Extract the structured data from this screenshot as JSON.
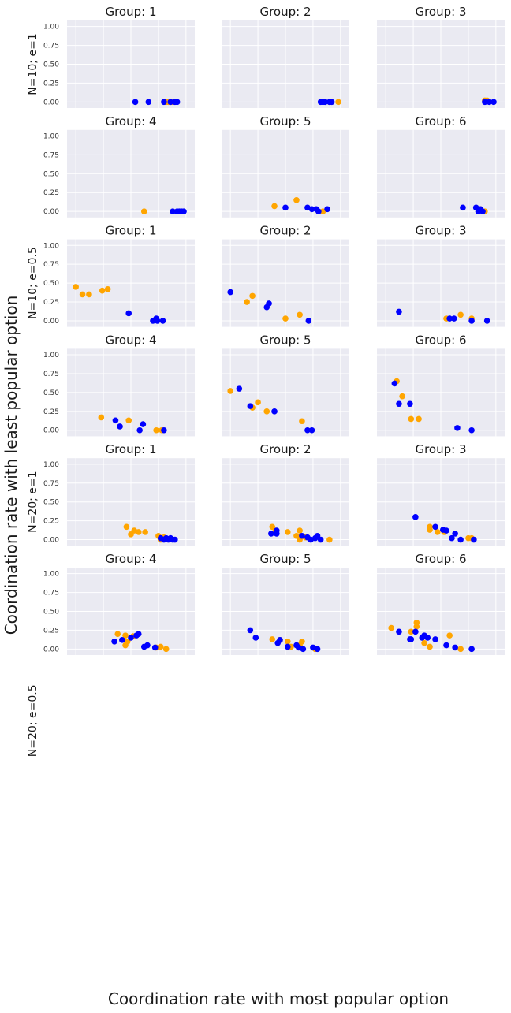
{
  "figure": {
    "ylabel": "Coordination rate with least popular option",
    "xlabel": "Coordination rate  with most popular option",
    "row_labels": [
      "N=10; e=1",
      "N=10; e=0.5",
      "N=20; e=1",
      "N=20; e=0.5"
    ]
  },
  "colors": {
    "orange": "#FFA500",
    "blue": "#0000FF",
    "panel_bg": "#EAEAF2",
    "grid": "#FFFFFF"
  },
  "chart_data": {
    "type": "scatter",
    "grid": true,
    "xlim": [
      -0.08,
      1.08
    ],
    "ylim": [
      -0.08,
      1.08
    ],
    "xticks": [
      "0.00",
      "0.25",
      "0.50",
      "0.75",
      "1.00"
    ],
    "yticks": [
      "0.00",
      "0.25",
      "0.50",
      "0.75",
      "1.00"
    ],
    "panels": [
      {
        "title": "Group: 1",
        "orange": [
          [
            0.82,
            0
          ],
          [
            0.84,
            0
          ],
          [
            0.86,
            0
          ],
          [
            0.88,
            0
          ]
        ],
        "blue": [
          [
            0.54,
            0
          ],
          [
            0.66,
            0
          ],
          [
            0.8,
            0
          ],
          [
            0.86,
            0
          ],
          [
            0.9,
            0
          ],
          [
            0.92,
            0
          ]
        ]
      },
      {
        "title": "Group: 2",
        "orange": [
          [
            0.98,
            0
          ],
          [
            0.9,
            0
          ]
        ],
        "blue": [
          [
            0.82,
            0
          ],
          [
            0.84,
            0
          ],
          [
            0.86,
            0
          ],
          [
            0.9,
            0
          ],
          [
            0.92,
            0
          ]
        ]
      },
      {
        "title": "Group: 3",
        "orange": [
          [
            0.9,
            0.02
          ],
          [
            0.92,
            0.02
          ]
        ],
        "blue": [
          [
            0.9,
            0
          ],
          [
            0.94,
            0
          ],
          [
            0.98,
            0
          ]
        ]
      },
      {
        "title": "Group: 4",
        "orange": [
          [
            0.62,
            0
          ]
        ],
        "blue": [
          [
            0.88,
            0
          ],
          [
            0.92,
            0
          ],
          [
            0.94,
            0
          ],
          [
            0.96,
            0
          ],
          [
            0.98,
            0
          ]
        ]
      },
      {
        "title": "Group: 5",
        "orange": [
          [
            0.4,
            0.07
          ],
          [
            0.6,
            0.15
          ],
          [
            0.8,
            0
          ],
          [
            0.84,
            0
          ]
        ],
        "blue": [
          [
            0.5,
            0.05
          ],
          [
            0.7,
            0.05
          ],
          [
            0.74,
            0.03
          ],
          [
            0.78,
            0.03
          ],
          [
            0.8,
            0
          ],
          [
            0.88,
            0.03
          ]
        ]
      },
      {
        "title": "Group: 6",
        "orange": [
          [
            0.86,
            0.03
          ],
          [
            0.9,
            0
          ]
        ],
        "blue": [
          [
            0.7,
            0.05
          ],
          [
            0.82,
            0.05
          ],
          [
            0.84,
            0
          ],
          [
            0.86,
            0.03
          ],
          [
            0.88,
            0
          ]
        ]
      },
      {
        "title": "Group: 1",
        "orange": [
          [
            0.0,
            0.45
          ],
          [
            0.06,
            0.35
          ],
          [
            0.12,
            0.35
          ],
          [
            0.24,
            0.4
          ],
          [
            0.29,
            0.42
          ]
        ],
        "blue": [
          [
            0.48,
            0.1
          ],
          [
            0.7,
            0
          ],
          [
            0.73,
            0.03
          ],
          [
            0.74,
            0
          ],
          [
            0.79,
            0
          ]
        ]
      },
      {
        "title": "Group: 2",
        "orange": [
          [
            0.15,
            0.25
          ],
          [
            0.2,
            0.33
          ],
          [
            0.5,
            0.03
          ],
          [
            0.63,
            0.08
          ]
        ],
        "blue": [
          [
            0.0,
            0.38
          ],
          [
            0.33,
            0.18
          ],
          [
            0.35,
            0.23
          ],
          [
            0.71,
            0
          ]
        ]
      },
      {
        "title": "Group: 3",
        "orange": [
          [
            0.55,
            0.03
          ],
          [
            0.68,
            0.08
          ],
          [
            0.78,
            0.03
          ]
        ],
        "blue": [
          [
            0.12,
            0.12
          ],
          [
            0.58,
            0.03
          ],
          [
            0.62,
            0.03
          ],
          [
            0.78,
            0
          ],
          [
            0.92,
            0
          ]
        ]
      },
      {
        "title": "Group: 4",
        "orange": [
          [
            0.23,
            0.17
          ],
          [
            0.48,
            0.13
          ],
          [
            0.73,
            0
          ],
          [
            0.78,
            0
          ]
        ],
        "blue": [
          [
            0.36,
            0.13
          ],
          [
            0.4,
            0.05
          ],
          [
            0.58,
            0
          ],
          [
            0.61,
            0.08
          ],
          [
            0.8,
            0
          ]
        ]
      },
      {
        "title": "Group: 5",
        "orange": [
          [
            0.0,
            0.52
          ],
          [
            0.2,
            0.3
          ],
          [
            0.25,
            0.37
          ],
          [
            0.33,
            0.25
          ],
          [
            0.65,
            0.12
          ]
        ],
        "blue": [
          [
            0.08,
            0.55
          ],
          [
            0.18,
            0.32
          ],
          [
            0.4,
            0.25
          ],
          [
            0.7,
            0
          ],
          [
            0.74,
            0
          ]
        ]
      },
      {
        "title": "Group: 6",
        "orange": [
          [
            0.1,
            0.65
          ],
          [
            0.15,
            0.45
          ],
          [
            0.23,
            0.15
          ],
          [
            0.3,
            0.15
          ]
        ],
        "blue": [
          [
            0.08,
            0.62
          ],
          [
            0.12,
            0.35
          ],
          [
            0.22,
            0.35
          ],
          [
            0.65,
            0.03
          ],
          [
            0.78,
            0
          ]
        ]
      },
      {
        "title": "Group: 1",
        "orange": [
          [
            0.46,
            0.17
          ],
          [
            0.5,
            0.07
          ],
          [
            0.53,
            0.12
          ],
          [
            0.57,
            0.1
          ],
          [
            0.63,
            0.1
          ],
          [
            0.75,
            0.05
          ],
          [
            0.77,
            0
          ],
          [
            0.8,
            0.03
          ]
        ],
        "blue": [
          [
            0.77,
            0.02
          ],
          [
            0.8,
            0
          ],
          [
            0.82,
            0.02
          ],
          [
            0.84,
            0
          ],
          [
            0.86,
            0.02
          ],
          [
            0.88,
            0
          ],
          [
            0.9,
            0
          ]
        ]
      },
      {
        "title": "Group: 2",
        "orange": [
          [
            0.38,
            0.17
          ],
          [
            0.41,
            0.12
          ],
          [
            0.52,
            0.1
          ],
          [
            0.6,
            0.05
          ],
          [
            0.63,
            0.12
          ],
          [
            0.63,
            0
          ],
          [
            0.68,
            0.03
          ],
          [
            0.9,
            0
          ]
        ],
        "blue": [
          [
            0.37,
            0.08
          ],
          [
            0.42,
            0.08
          ],
          [
            0.42,
            0.12
          ],
          [
            0.65,
            0.05
          ],
          [
            0.7,
            0.03
          ],
          [
            0.73,
            0
          ],
          [
            0.77,
            0.02
          ],
          [
            0.79,
            0.05
          ],
          [
            0.82,
            0
          ]
        ]
      },
      {
        "title": "Group: 3",
        "orange": [
          [
            0.4,
            0.17
          ],
          [
            0.4,
            0.13
          ],
          [
            0.47,
            0.1
          ],
          [
            0.53,
            0.1
          ],
          [
            0.75,
            0.02
          ],
          [
            0.78,
            0.02
          ]
        ],
        "blue": [
          [
            0.27,
            0.3
          ],
          [
            0.45,
            0.17
          ],
          [
            0.52,
            0.13
          ],
          [
            0.55,
            0.12
          ],
          [
            0.6,
            0.02
          ],
          [
            0.63,
            0.08
          ],
          [
            0.68,
            0
          ],
          [
            0.8,
            0
          ]
        ]
      },
      {
        "title": "Group: 4",
        "orange": [
          [
            0.38,
            0.2
          ],
          [
            0.45,
            0.18
          ],
          [
            0.45,
            0.05
          ],
          [
            0.47,
            0.1
          ],
          [
            0.52,
            0.17
          ],
          [
            0.73,
            0.02
          ],
          [
            0.77,
            0.03
          ],
          [
            0.82,
            0
          ]
        ],
        "blue": [
          [
            0.35,
            0.1
          ],
          [
            0.42,
            0.12
          ],
          [
            0.5,
            0.15
          ],
          [
            0.55,
            0.18
          ],
          [
            0.57,
            0.2
          ],
          [
            0.62,
            0.03
          ],
          [
            0.65,
            0.05
          ],
          [
            0.72,
            0.02
          ]
        ]
      },
      {
        "title": "Group: 5",
        "orange": [
          [
            0.38,
            0.13
          ],
          [
            0.45,
            0.12
          ],
          [
            0.52,
            0.1
          ],
          [
            0.55,
            0.03
          ],
          [
            0.63,
            0.05
          ],
          [
            0.65,
            0.1
          ],
          [
            0.77,
            0
          ]
        ],
        "blue": [
          [
            0.18,
            0.25
          ],
          [
            0.23,
            0.15
          ],
          [
            0.43,
            0.08
          ],
          [
            0.45,
            0.12
          ],
          [
            0.52,
            0.03
          ],
          [
            0.6,
            0.05
          ],
          [
            0.62,
            0.02
          ],
          [
            0.66,
            0
          ],
          [
            0.75,
            0.02
          ],
          [
            0.79,
            0
          ]
        ]
      },
      {
        "title": "Group: 6",
        "orange": [
          [
            0.05,
            0.28
          ],
          [
            0.23,
            0.23
          ],
          [
            0.28,
            0.35
          ],
          [
            0.28,
            0.3
          ],
          [
            0.35,
            0.08
          ],
          [
            0.4,
            0.03
          ],
          [
            0.58,
            0.18
          ],
          [
            0.68,
            0
          ]
        ],
        "blue": [
          [
            0.12,
            0.23
          ],
          [
            0.22,
            0.13
          ],
          [
            0.23,
            0.13
          ],
          [
            0.27,
            0.23
          ],
          [
            0.33,
            0.15
          ],
          [
            0.35,
            0.18
          ],
          [
            0.38,
            0.15
          ],
          [
            0.45,
            0.13
          ],
          [
            0.55,
            0.05
          ],
          [
            0.63,
            0.02
          ],
          [
            0.78,
            0
          ]
        ]
      }
    ]
  }
}
